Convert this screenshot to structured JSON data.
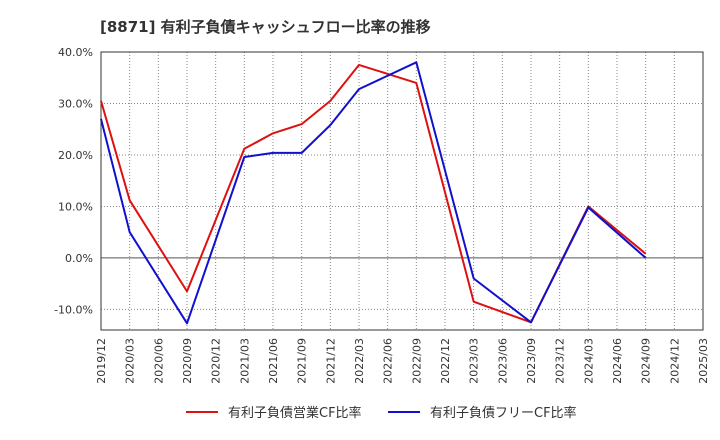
{
  "chart_data": {
    "type": "line",
    "title": "[8871]  有利子負債キャッシュフロー比率の推移",
    "xlabel": "",
    "ylabel": "",
    "ylim": [
      -14,
      40
    ],
    "yticks": [
      40,
      30,
      20,
      10,
      0,
      -10
    ],
    "ytick_labels": [
      "40.0%",
      "30.0%",
      "20.0%",
      "10.0%",
      "0.0%",
      "-10.0%"
    ],
    "categories": [
      "2019/12",
      "2020/03",
      "2020/06",
      "2020/09",
      "2020/12",
      "2021/03",
      "2021/06",
      "2021/09",
      "2021/12",
      "2022/03",
      "2022/06",
      "2022/09",
      "2022/12",
      "2023/03",
      "2023/06",
      "2023/09",
      "2023/12",
      "2024/03",
      "2024/06",
      "2024/09",
      "2024/12",
      "2025/03"
    ],
    "series": [
      {
        "name": "有利子負債営業CF比率",
        "color": "#dd1111",
        "values": [
          30.5,
          11.2,
          null,
          -6.5,
          null,
          21.2,
          24.2,
          26.0,
          30.5,
          37.5,
          null,
          34.0,
          null,
          -8.5,
          null,
          -12.5,
          null,
          10.0,
          null,
          0.8,
          null,
          null
        ]
      },
      {
        "name": "有利子負債フリーCF比率",
        "color": "#1111cc",
        "values": [
          27.0,
          5.0,
          null,
          -12.7,
          null,
          19.6,
          20.4,
          20.4,
          25.8,
          32.8,
          null,
          38.0,
          null,
          -4.0,
          null,
          -12.5,
          null,
          9.8,
          null,
          0.0,
          null,
          null
        ]
      }
    ],
    "grid": true,
    "legend_position": "bottom-center"
  }
}
